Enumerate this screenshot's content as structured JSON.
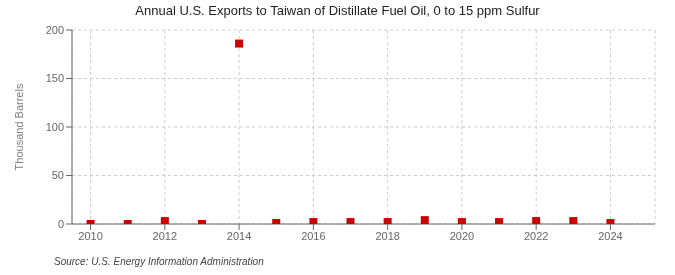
{
  "chart_data": {
    "type": "scatter",
    "title": "Annual U.S. Exports to Taiwan of Distillate Fuel Oil, 0 to 15 ppm Sulfur",
    "ylabel": "Thousand Barrels",
    "source": "Source: U.S. Energy Information Administration",
    "x": [
      2010,
      2011,
      2012,
      2013,
      2014,
      2015,
      2016,
      2017,
      2018,
      2019,
      2020,
      2021,
      2022,
      2023,
      2024
    ],
    "values": [
      0,
      0,
      3,
      0,
      186,
      1,
      2,
      2,
      2,
      4,
      2,
      2,
      3,
      3,
      1
    ],
    "xlim": [
      2009.5,
      2025.2
    ],
    "ylim": [
      0,
      200
    ],
    "xticks": [
      2010,
      2012,
      2014,
      2016,
      2018,
      2020,
      2022,
      2024
    ],
    "yticks": [
      0,
      50,
      100,
      150,
      200
    ],
    "grid": true,
    "color": "#cc0000",
    "marker": "square"
  }
}
